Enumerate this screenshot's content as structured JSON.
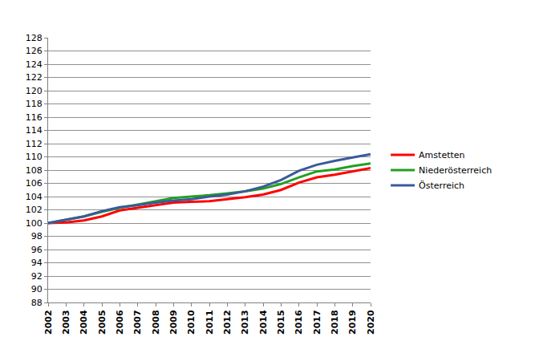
{
  "chart_data": {
    "type": "line",
    "x": [
      2002,
      2003,
      2004,
      2005,
      2006,
      2007,
      2008,
      2009,
      2010,
      2011,
      2012,
      2013,
      2014,
      2015,
      2016,
      2017,
      2018,
      2019,
      2020
    ],
    "series": [
      {
        "name": "Amstetten",
        "color": "#ff0000",
        "values": [
          100,
          100.1,
          100.4,
          101.0,
          101.9,
          102.3,
          102.7,
          103.1,
          103.2,
          103.3,
          103.6,
          103.9,
          104.3,
          105.0,
          106.1,
          106.9,
          107.3,
          107.8,
          108.3
        ]
      },
      {
        "name": "Niederösterreich",
        "color": "#22a022",
        "values": [
          100,
          100.5,
          101.0,
          101.7,
          102.3,
          102.8,
          103.3,
          103.8,
          104.0,
          104.2,
          104.5,
          104.8,
          105.2,
          105.9,
          106.9,
          107.8,
          108.1,
          108.6,
          109.0
        ]
      },
      {
        "name": "Österreich",
        "color": "#3a5a9a",
        "values": [
          100,
          100.5,
          101.0,
          101.8,
          102.4,
          102.7,
          103.1,
          103.4,
          103.6,
          104.0,
          104.3,
          104.8,
          105.5,
          106.5,
          107.9,
          108.8,
          109.4,
          109.9,
          110.4
        ]
      }
    ],
    "xlim": [
      2002,
      2020
    ],
    "xticks": [
      2002,
      2003,
      2004,
      2005,
      2006,
      2007,
      2008,
      2009,
      2010,
      2011,
      2012,
      2013,
      2014,
      2015,
      2016,
      2017,
      2018,
      2019,
      2020
    ],
    "ylim": [
      88,
      128
    ],
    "yticks": [
      88,
      90,
      92,
      94,
      96,
      98,
      100,
      102,
      104,
      106,
      108,
      110,
      112,
      114,
      116,
      118,
      120,
      122,
      124,
      126,
      128
    ],
    "grid": true,
    "legend": "right"
  }
}
